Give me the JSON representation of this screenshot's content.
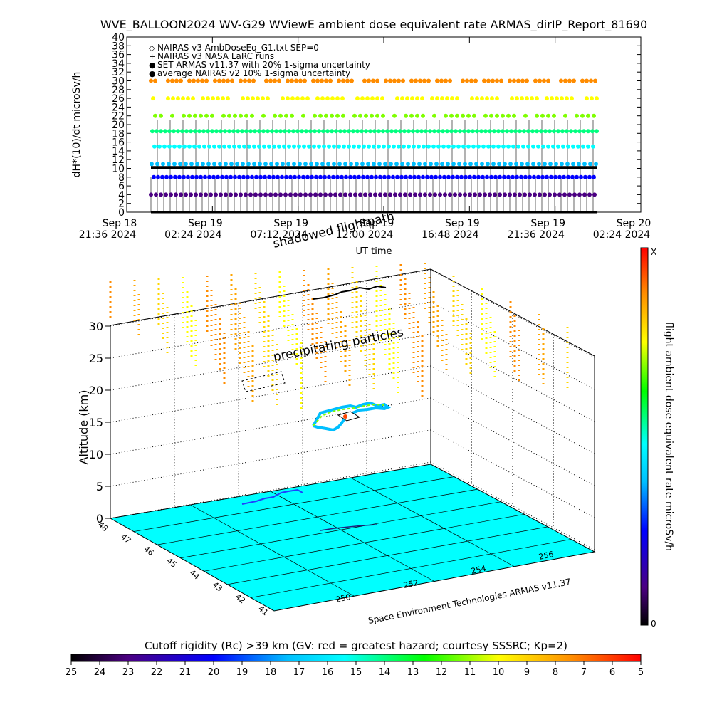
{
  "title": "WVE_BALLOON2024 WV-G29 WViewE ambient dose equivalent rate ARMAS_dirIP_Report_81690",
  "chart_data": [
    {
      "type": "scatter",
      "ylabel": "dH*(10)/dt microSv/h",
      "xlabel": "UT time",
      "y_ticks": [
        "0",
        "2",
        "4",
        "6",
        "8",
        "10",
        "12",
        "14",
        "16",
        "18",
        "20",
        "22",
        "24",
        "26",
        "28",
        "30",
        "32",
        "34",
        "36",
        "38",
        "40"
      ],
      "ylim": [
        0,
        40
      ],
      "x_ticks": [
        {
          "l1": "Sep 18",
          "l2": "21:36 2024"
        },
        {
          "l1": "Sep 19",
          "l2": "02:24 2024"
        },
        {
          "l1": "Sep 19",
          "l2": "07:12 2024"
        },
        {
          "l1": "Sep 19",
          "l2": "12:00 2024"
        },
        {
          "l1": "Sep 19",
          "l2": "16:48 2024"
        },
        {
          "l1": "Sep 19",
          "l2": "21:36 2024"
        },
        {
          "l1": "Sep 20",
          "l2": "02:24 2024"
        }
      ],
      "legend": [
        {
          "symbol": "◇",
          "color": "#000000",
          "label": "NAIRAS v3 AmbDoseEq_G1.txt SEP=0"
        },
        {
          "symbol": "+",
          "color": "#000000",
          "label": "NAIRAS v3 NASA LaRC runs"
        },
        {
          "symbol": "●",
          "color": "#ff0000",
          "label": "SET ARMAS v11.37 with 20% 1-sigma uncertainty"
        },
        {
          "symbol": "●",
          "color": "#0000ff",
          "label": "average NAIRAS v2 10% 1-sigma uncertainty"
        }
      ],
      "series_levels": [
        {
          "value": 30,
          "color": "#ff8c00"
        },
        {
          "value": 26,
          "color": "#ffff00"
        },
        {
          "value": 22,
          "color": "#7fff00"
        },
        {
          "value": 18.5,
          "color": "#00ff7f"
        },
        {
          "value": 15,
          "color": "#00ffff"
        },
        {
          "value": 11,
          "color": "#00bfff"
        },
        {
          "value": 8,
          "color": "#0000ff"
        },
        {
          "value": 4,
          "color": "#4b0082"
        },
        {
          "value": 10.2,
          "color": "#000000"
        },
        {
          "value": 0,
          "color": "#000000"
        }
      ]
    },
    {
      "type": "3d-trajectory",
      "zlabel": "Altitude (km)",
      "z_ticks": [
        "0",
        "5",
        "10",
        "15",
        "20",
        "25",
        "30"
      ],
      "lat_ticks": [
        "41",
        "42",
        "43",
        "44",
        "45",
        "46",
        "47",
        "48"
      ],
      "lon_ticks": [
        "250",
        "252",
        "254",
        "256"
      ],
      "annotations": [
        "precipitating particles",
        "shadowed flightpath"
      ],
      "credit": "Space Environment Technologies ARMAS v11.37",
      "colorbar_label": "flight ambient dose equivalent rate microSv/h",
      "colorbar_top": "X",
      "colorbar_bottom": "0"
    },
    {
      "type": "colorbar",
      "title": "Cutoff rigidity (Rc) >39 km (GV: red = greatest hazard; courtesy SSSRC; Kp=2)",
      "ticks": [
        "25",
        "24",
        "23",
        "22",
        "21",
        "20",
        "19",
        "18",
        "17",
        "16",
        "15",
        "14",
        "13",
        "12",
        "11",
        "10",
        "9",
        "8",
        "7",
        "6",
        "5"
      ]
    }
  ],
  "colors": {
    "ground": "#00ffff",
    "frame": "#000000"
  }
}
